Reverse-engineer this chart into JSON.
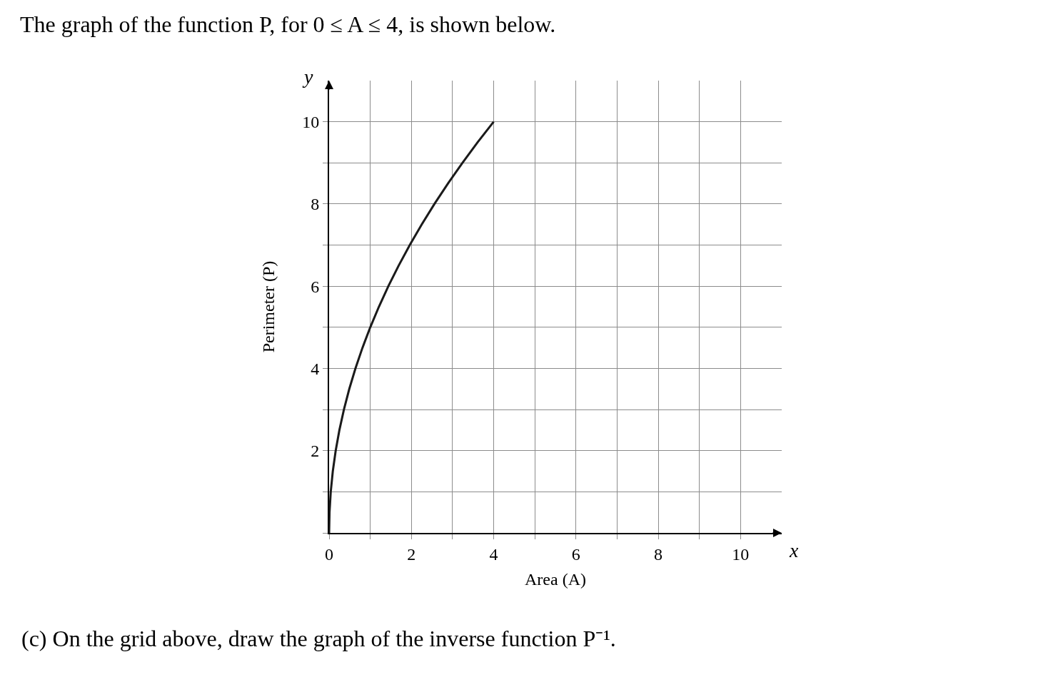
{
  "chart_data": {
    "type": "line",
    "title": "The graph of the function P, for 0 ≤ A ≤ 4, is shown below.",
    "xlabel": "Area (A)",
    "ylabel": "Perimeter (P)",
    "annotations": [
      "y",
      "x",
      "(c) On the grid above, draw the graph of the inverse function P⁻¹."
    ],
    "series": [
      {
        "color": "#1a1a1a",
        "x": [
          0,
          0.01,
          0.04,
          0.09,
          0.16,
          0.25,
          0.36,
          0.49,
          0.64,
          0.81,
          1,
          1.21,
          1.44,
          1.69,
          1.96,
          2.25,
          2.56,
          2.89,
          3.24,
          3.61,
          4
        ],
        "values": [
          0,
          0.5,
          1,
          1.5,
          2,
          2.5,
          3,
          3.5,
          4,
          4.5,
          5,
          5.5,
          6,
          6.5,
          7,
          7.5,
          8,
          8.5,
          9,
          9.5,
          10
        ]
      }
    ],
    "xlim": [
      0,
      11
    ],
    "ylim": [
      0,
      11
    ],
    "xticks": [
      0,
      {
        "value": 1,
        "label": null
      },
      2,
      {
        "value": 3,
        "label": null
      },
      4,
      {
        "value": 5,
        "label": null
      },
      6,
      {
        "value": 7,
        "label": null
      },
      8,
      {
        "value": 9,
        "label": null
      },
      10
    ],
    "yticks": [
      {
        "value": 0,
        "label": null
      },
      {
        "value": 1,
        "label": null
      },
      2,
      {
        "value": 3,
        "label": null
      },
      4,
      {
        "value": 5,
        "label": null
      },
      6,
      {
        "value": 7,
        "label": null
      },
      8,
      {
        "value": 9,
        "label": null
      },
      10
    ],
    "grid": true,
    "marker": "none",
    "line_style": "solid"
  }
}
